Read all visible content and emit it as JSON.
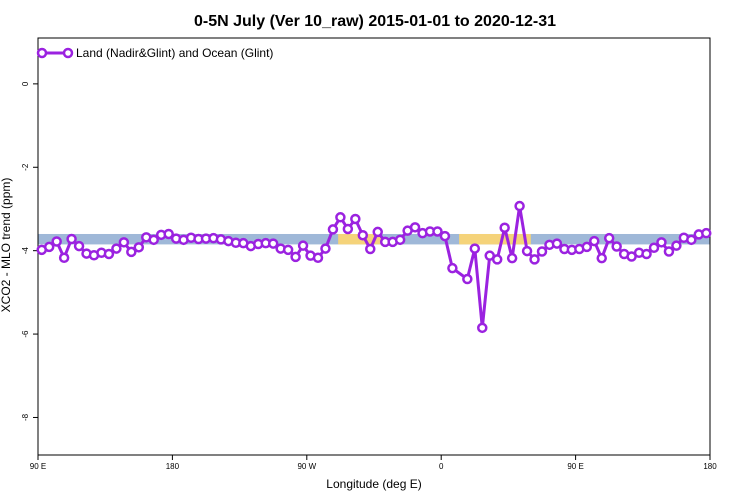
{
  "chart_data": {
    "type": "line",
    "title": "0-5N July (Ver 10_raw)   2015-01-01 to 2020-12-31",
    "xlabel": "Longitude (deg E)",
    "ylabel": "XCO2 - MLO trend (ppm)",
    "x_ticks": [
      "90 E",
      "180",
      "90 W",
      "0",
      "90 E",
      "180"
    ],
    "x_tick_values": [
      0,
      90,
      180,
      270,
      360,
      450
    ],
    "y_ticks": [
      "0",
      "-2",
      "-4",
      "-6",
      "-8"
    ],
    "y_tick_values": [
      0,
      -2,
      -4,
      -6,
      -8
    ],
    "xlim": [
      0,
      450
    ],
    "ylim": [
      -8.9,
      1.1
    ],
    "grid": false,
    "legend_position": "top-left",
    "series": [
      {
        "name": "Land (Nadir&Glint) and Ocean (Glint)",
        "color": "#9b22e0",
        "x": [
          2.5,
          7.5,
          12.5,
          17.5,
          22.5,
          27.5,
          32.5,
          37.5,
          42.5,
          47.5,
          52.5,
          57.5,
          62.5,
          67.5,
          72.5,
          77.5,
          82.5,
          87.5,
          92.5,
          97.5,
          102.5,
          107.5,
          112.5,
          117.5,
          122.5,
          127.5,
          132.5,
          137.5,
          142.5,
          147.5,
          152.5,
          157.5,
          162.5,
          167.5,
          172.5,
          177.5,
          182.5,
          187.5,
          192.5,
          197.5,
          202.5,
          207.5,
          212.5,
          217.5,
          222.5,
          227.5,
          232.5,
          237.5,
          242.5,
          247.5,
          252.5,
          257.5,
          262.5,
          267.5,
          272.5,
          277.5,
          287.5,
          292.5,
          297.5,
          302.5,
          307.5,
          312.5,
          317.5,
          322.5,
          327.5,
          332.5,
          337.5,
          342.5,
          347.5,
          352.5,
          357.5,
          362.5,
          367.5,
          372.5,
          377.5,
          382.5,
          387.5,
          392.5,
          397.5,
          402.5,
          407.5,
          412.5,
          417.5,
          422.5,
          427.5,
          432.5,
          437.5,
          442.5,
          447.5
        ],
        "y": [
          -3.98,
          -3.91,
          -3.78,
          -4.17,
          -3.72,
          -3.89,
          -4.07,
          -4.11,
          -4.05,
          -4.08,
          -3.95,
          -3.8,
          -4.03,
          -3.92,
          -3.68,
          -3.74,
          -3.62,
          -3.6,
          -3.71,
          -3.74,
          -3.69,
          -3.72,
          -3.71,
          -3.7,
          -3.73,
          -3.77,
          -3.81,
          -3.82,
          -3.89,
          -3.84,
          -3.82,
          -3.83,
          -3.95,
          -3.98,
          -4.15,
          -3.88,
          -4.12,
          -4.17,
          -3.95,
          -3.49,
          -3.2,
          -3.48,
          -3.24,
          -3.63,
          -3.96,
          -3.55,
          -3.79,
          -3.79,
          -3.74,
          -3.52,
          -3.44,
          -3.58,
          -3.54,
          -3.54,
          -3.65,
          -4.42,
          -4.68,
          -3.95,
          -5.85,
          -4.12,
          -4.21,
          -3.45,
          -4.18,
          -2.93,
          -4.01,
          -4.21,
          -4.02,
          -3.86,
          -3.83,
          -3.96,
          -3.98,
          -3.96,
          -3.91,
          -3.77,
          -4.18,
          -3.7,
          -3.9,
          -4.08,
          -4.14,
          -4.05,
          -4.08,
          -3.93,
          -3.8,
          -4.02,
          -3.88,
          -3.69,
          -3.74,
          -3.61,
          -3.58
        ]
      }
    ],
    "band_y": [
      -3.6,
      -3.85
    ],
    "band_colors": [
      "#9fb8d8",
      "#f5d37a"
    ],
    "band_orange_ranges": [
      [
        201,
        230
      ],
      [
        282,
        330
      ]
    ]
  }
}
